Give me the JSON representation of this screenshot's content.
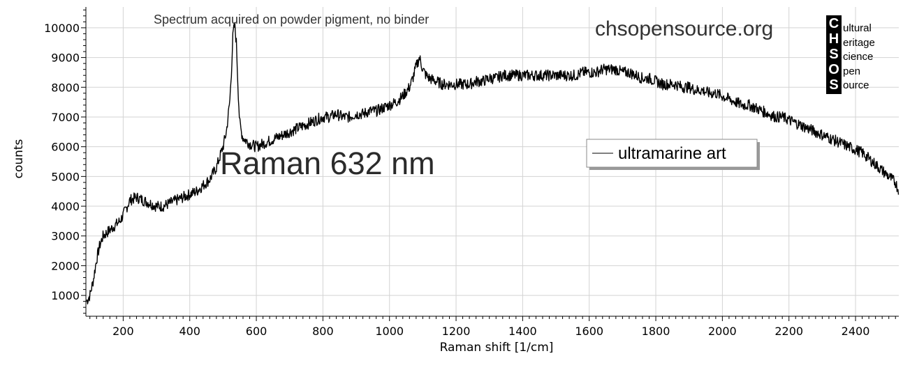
{
  "chart_data": {
    "type": "line",
    "title": "",
    "xlabel": "Raman shift [1/cm]",
    "ylabel": "counts",
    "xlim": [
      88,
      2530
    ],
    "ylim": [
      300,
      10700
    ],
    "x_ticks": [
      200,
      400,
      600,
      800,
      1000,
      1200,
      1400,
      1600,
      1800,
      2000,
      2200,
      2400
    ],
    "y_ticks": [
      1000,
      2000,
      3000,
      4000,
      5000,
      6000,
      7000,
      8000,
      9000,
      10000
    ],
    "grid": true,
    "legend_position": "right",
    "annotations": [
      "Spectrum acquired on powder pigment, no binder",
      "Raman 632 nm",
      "chsopensource.org"
    ],
    "series": [
      {
        "name": "ultramarine art",
        "color": "#000000",
        "x": [
          90,
          100,
          110,
          120,
          130,
          140,
          150,
          170,
          190,
          200,
          220,
          240,
          260,
          280,
          300,
          320,
          340,
          360,
          380,
          400,
          420,
          440,
          460,
          480,
          500,
          510,
          520,
          525,
          530,
          535,
          540,
          545,
          550,
          555,
          560,
          570,
          580,
          600,
          620,
          640,
          660,
          680,
          700,
          720,
          740,
          760,
          780,
          800,
          820,
          840,
          860,
          880,
          900,
          920,
          940,
          960,
          980,
          1000,
          1020,
          1040,
          1060,
          1070,
          1080,
          1090,
          1100,
          1110,
          1120,
          1140,
          1160,
          1180,
          1200,
          1220,
          1240,
          1260,
          1280,
          1300,
          1320,
          1340,
          1360,
          1380,
          1400,
          1420,
          1440,
          1460,
          1480,
          1500,
          1520,
          1540,
          1560,
          1580,
          1600,
          1620,
          1640,
          1660,
          1680,
          1700,
          1720,
          1740,
          1760,
          1780,
          1800,
          1820,
          1840,
          1860,
          1880,
          1900,
          1920,
          1940,
          1960,
          1980,
          2000,
          2020,
          2040,
          2060,
          2080,
          2100,
          2120,
          2140,
          2160,
          2180,
          2200,
          2220,
          2240,
          2260,
          2280,
          2300,
          2320,
          2340,
          2360,
          2380,
          2400,
          2420,
          2440,
          2460,
          2480,
          2500,
          2520,
          2530
        ],
        "y": [
          800,
          1000,
          1500,
          2200,
          2700,
          3000,
          3100,
          3300,
          3500,
          3700,
          4200,
          4300,
          4200,
          4100,
          4000,
          4000,
          4100,
          4200,
          4300,
          4400,
          4500,
          4700,
          4900,
          5300,
          6000,
          6500,
          7500,
          8500,
          9800,
          10100,
          9500,
          8000,
          6800,
          6500,
          6300,
          6200,
          6100,
          6000,
          6100,
          6200,
          6300,
          6400,
          6500,
          6600,
          6700,
          6800,
          6900,
          7000,
          7000,
          7100,
          7000,
          7000,
          7100,
          7100,
          7200,
          7200,
          7300,
          7400,
          7500,
          7700,
          8000,
          8300,
          8700,
          9000,
          8600,
          8400,
          8300,
          8200,
          8100,
          8100,
          8100,
          8100,
          8100,
          8200,
          8200,
          8300,
          8300,
          8400,
          8400,
          8400,
          8400,
          8400,
          8400,
          8400,
          8400,
          8400,
          8400,
          8400,
          8400,
          8500,
          8500,
          8500,
          8600,
          8600,
          8600,
          8500,
          8500,
          8400,
          8300,
          8300,
          8200,
          8100,
          8100,
          8100,
          8000,
          8000,
          7900,
          7900,
          7800,
          7800,
          7700,
          7600,
          7500,
          7400,
          7400,
          7300,
          7200,
          7100,
          7000,
          7000,
          6900,
          6800,
          6700,
          6600,
          6500,
          6400,
          6300,
          6200,
          6100,
          6000,
          5900,
          5800,
          5600,
          5400,
          5200,
          5000,
          4800,
          4500
        ]
      }
    ]
  },
  "logo": {
    "letters": [
      "C",
      "H",
      "S",
      "O",
      "S"
    ],
    "words": [
      "ultural",
      "eritage",
      "cience",
      "pen",
      "ource"
    ]
  }
}
